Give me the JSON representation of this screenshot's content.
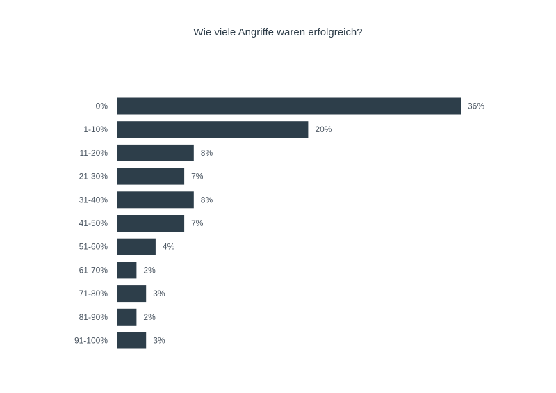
{
  "chart_data": {
    "type": "bar",
    "orientation": "horizontal",
    "title": "Wie viele Angriffe waren erfolgreich?",
    "xlabel": "",
    "ylabel": "",
    "categories": [
      "0%",
      "1-10%",
      "11-20%",
      "21-30%",
      "31-40%",
      "41-50%",
      "51-60%",
      "61-70%",
      "71-80%",
      "81-90%",
      "91-100%"
    ],
    "values": [
      36,
      20,
      8,
      7,
      8,
      7,
      4,
      2,
      3,
      2,
      3
    ],
    "value_labels": [
      "36%",
      "20%",
      "8%",
      "7%",
      "8%",
      "7%",
      "4%",
      "2%",
      "3%",
      "2%",
      "3%"
    ],
    "xlim": [
      0,
      36
    ],
    "grid": false,
    "legend": "none",
    "bar_color": "#2d3e4a",
    "text_color": "#4a5561"
  }
}
